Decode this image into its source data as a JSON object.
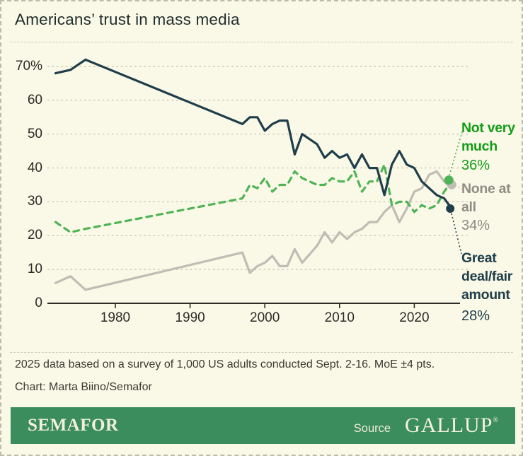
{
  "title": "Americans’ trust in mass media",
  "chart_data": {
    "type": "line",
    "title": "Americans’ trust in mass media",
    "x": [
      1972,
      1974,
      1976,
      1997,
      1998,
      1999,
      2000,
      2001,
      2002,
      2003,
      2004,
      2005,
      2007,
      2008,
      2009,
      2010,
      2011,
      2012,
      2013,
      2014,
      2015,
      2016,
      2017,
      2018,
      2019,
      2020,
      2021,
      2022,
      2023,
      2024,
      2025
    ],
    "series": [
      {
        "name": "None at all",
        "color": "#bfbdb4",
        "dash": "solid",
        "values": [
          6,
          8,
          4,
          15,
          9,
          11,
          12,
          14,
          11,
          11,
          16,
          12,
          17,
          21,
          18,
          21,
          19,
          21,
          22,
          24,
          24,
          27,
          29,
          24,
          28,
          33,
          34,
          38,
          39,
          36,
          34
        ]
      },
      {
        "name": "Not very much",
        "color": "#4fb456",
        "dash": "dashed",
        "values": [
          24,
          21,
          22,
          31,
          35,
          34,
          37,
          33,
          35,
          35,
          39,
          37,
          35,
          35,
          37,
          36,
          36,
          39,
          33,
          36,
          36,
          41,
          29,
          30,
          30,
          27,
          29,
          28,
          29,
          33,
          36
        ]
      },
      {
        "name": "Great deal/fair amount",
        "color": "#1f3e4a",
        "dash": "solid",
        "values": [
          68,
          69,
          72,
          53,
          55,
          55,
          51,
          53,
          54,
          54,
          44,
          50,
          47,
          43,
          45,
          43,
          44,
          40,
          44,
          40,
          40,
          32,
          41,
          45,
          41,
          40,
          36,
          34,
          32,
          31,
          28
        ]
      }
    ],
    "yticks": [
      0,
      10,
      20,
      30,
      40,
      50,
      60,
      70
    ],
    "ytick_labels": [
      "0",
      "10",
      "20",
      "30",
      "40",
      "50",
      "60",
      "70%"
    ],
    "xticks": [
      1980,
      1990,
      2000,
      2010,
      2020
    ],
    "xtick_labels": [
      "1980",
      "1990",
      "2000",
      "2010",
      "2020"
    ],
    "xlim": [
      1972,
      2025
    ],
    "ylim": [
      0,
      75
    ],
    "grid": true,
    "legend_position": "right-annotations"
  },
  "annotations": {
    "not_very_much": {
      "label": "Not very\nmuch",
      "value": "36%"
    },
    "none_at_all": {
      "label": "None at\nall",
      "value": "34%"
    },
    "great_deal": {
      "label": "Great\ndeal/fair\namount",
      "value": "28%"
    }
  },
  "footer": {
    "note": "2025 data based on a survey of 1,000 US adults conducted Sept. 2-16. MoE ±4 pts.",
    "credit": "Chart: Marta Biino/Semafor"
  },
  "brandbar": {
    "brand": "SEMAFOR",
    "source_label": "Source",
    "source_name": "GALLUP",
    "registered": "®"
  },
  "colors": {
    "background": "#FAF8E7",
    "bar_green": "#3b8d5d",
    "line_navy": "#1f3e4a",
    "line_green": "#4fb456",
    "line_gray": "#bfbdb4",
    "label_green": "#119d17",
    "label_gray": "#8f8d84"
  }
}
